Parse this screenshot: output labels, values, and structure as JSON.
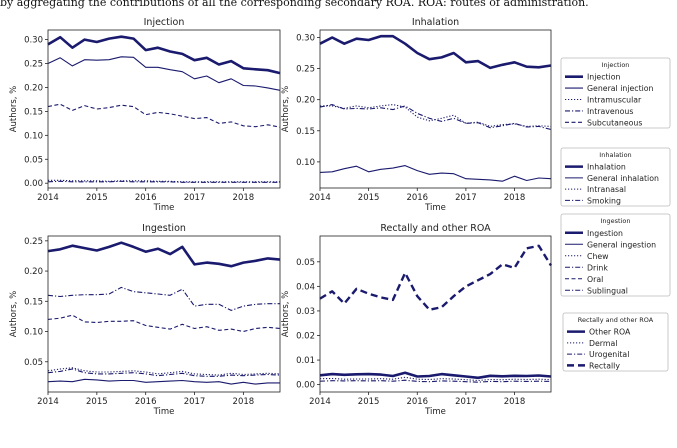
{
  "caption": "by aggregating the contributions of all the corresponding secondary ROA. ROA: routes of administration.",
  "colors": {
    "line": "#1a1a6e",
    "axis": "#222222",
    "legend_border": "#bbbbbb"
  },
  "chart_data": [
    {
      "id": "injection",
      "type": "line",
      "title": "Injection",
      "xlabel": "Time",
      "ylabel": "Authors, %",
      "xlim": [
        2014,
        2018.75
      ],
      "ylim": [
        -0.01,
        0.32
      ],
      "xticks": [
        "2014",
        "2015",
        "2016",
        "2017",
        "2018"
      ],
      "yticks": [
        "0.00",
        "0.05",
        "0.10",
        "0.15",
        "0.20",
        "0.25",
        "0.30"
      ],
      "x": [
        2014.0,
        2014.25,
        2014.5,
        2014.75,
        2015.0,
        2015.25,
        2015.5,
        2015.75,
        2016.0,
        2016.25,
        2016.5,
        2016.75,
        2017.0,
        2017.25,
        2017.5,
        2017.75,
        2018.0,
        2018.25,
        2018.5,
        2018.75
      ],
      "series": [
        {
          "name": "Injection",
          "style": "thick",
          "values": [
            0.29,
            0.305,
            0.283,
            0.3,
            0.295,
            0.302,
            0.306,
            0.302,
            0.278,
            0.283,
            0.275,
            0.27,
            0.257,
            0.262,
            0.248,
            0.255,
            0.24,
            0.238,
            0.236,
            0.23
          ]
        },
        {
          "name": "General injection",
          "style": "solid",
          "values": [
            0.25,
            0.262,
            0.245,
            0.258,
            0.257,
            0.258,
            0.264,
            0.263,
            0.242,
            0.242,
            0.237,
            0.233,
            0.218,
            0.224,
            0.21,
            0.218,
            0.204,
            0.203,
            0.199,
            0.194
          ]
        },
        {
          "name": "Intramuscular",
          "style": "dotted",
          "values": [
            0.006,
            0.006,
            0.005,
            0.005,
            0.005,
            0.004,
            0.005,
            0.005,
            0.005,
            0.004,
            0.004,
            0.003,
            0.003,
            0.003,
            0.003,
            0.003,
            0.003,
            0.003,
            0.003,
            0.003
          ]
        },
        {
          "name": "Intravenous",
          "style": "dashdot",
          "values": [
            0.003,
            0.004,
            0.003,
            0.003,
            0.003,
            0.003,
            0.004,
            0.003,
            0.003,
            0.003,
            0.003,
            0.002,
            0.002,
            0.002,
            0.002,
            0.002,
            0.002,
            0.002,
            0.002,
            0.002
          ]
        },
        {
          "name": "Subcutaneous",
          "style": "dashed",
          "values": [
            0.16,
            0.165,
            0.152,
            0.162,
            0.155,
            0.158,
            0.163,
            0.16,
            0.143,
            0.148,
            0.145,
            0.14,
            0.135,
            0.137,
            0.125,
            0.128,
            0.12,
            0.118,
            0.122,
            0.117
          ]
        }
      ],
      "legend": {
        "title": "Injection",
        "placement": "right"
      }
    },
    {
      "id": "inhalation",
      "type": "line",
      "title": "Inhalation",
      "xlabel": "Time",
      "ylabel": "Authors, %",
      "xlim": [
        2014,
        2018.75
      ],
      "ylim": [
        0.058,
        0.312
      ],
      "xticks": [
        "2014",
        "2015",
        "2016",
        "2017",
        "2018"
      ],
      "yticks": [
        "0.10",
        "0.15",
        "0.20",
        "0.25",
        "0.30"
      ],
      "x": [
        2014.0,
        2014.25,
        2014.5,
        2014.75,
        2015.0,
        2015.25,
        2015.5,
        2015.75,
        2016.0,
        2016.25,
        2016.5,
        2016.75,
        2017.0,
        2017.25,
        2017.5,
        2017.75,
        2018.0,
        2018.25,
        2018.5,
        2018.75
      ],
      "series": [
        {
          "name": "Inhalation",
          "style": "thick",
          "values": [
            0.29,
            0.3,
            0.29,
            0.298,
            0.296,
            0.302,
            0.302,
            0.29,
            0.275,
            0.265,
            0.268,
            0.275,
            0.26,
            0.262,
            0.251,
            0.256,
            0.26,
            0.253,
            0.252,
            0.255
          ]
        },
        {
          "name": "General inhalation",
          "style": "solid",
          "values": [
            0.083,
            0.084,
            0.089,
            0.093,
            0.084,
            0.088,
            0.09,
            0.094,
            0.086,
            0.08,
            0.082,
            0.081,
            0.073,
            0.072,
            0.071,
            0.069,
            0.077,
            0.07,
            0.074,
            0.073
          ]
        },
        {
          "name": "Intranasal",
          "style": "dotted",
          "values": [
            0.19,
            0.19,
            0.186,
            0.19,
            0.187,
            0.19,
            0.192,
            0.188,
            0.172,
            0.166,
            0.17,
            0.175,
            0.162,
            0.164,
            0.157,
            0.16,
            0.161,
            0.157,
            0.158,
            0.157
          ]
        },
        {
          "name": "Smoking",
          "style": "dashdot",
          "values": [
            0.188,
            0.192,
            0.185,
            0.186,
            0.185,
            0.187,
            0.184,
            0.19,
            0.178,
            0.17,
            0.165,
            0.17,
            0.162,
            0.163,
            0.155,
            0.158,
            0.162,
            0.156,
            0.157,
            0.152
          ]
        }
      ],
      "legend": {
        "title": "Inhalation",
        "placement": "right"
      }
    },
    {
      "id": "ingestion",
      "type": "line",
      "title": "Ingestion",
      "xlabel": "Time",
      "ylabel": "Authors, %",
      "xlim": [
        2014,
        2018.75
      ],
      "ylim": [
        0.0,
        0.258
      ],
      "xticks": [
        "2014",
        "2015",
        "2016",
        "2017",
        "2018"
      ],
      "yticks": [
        "0.05",
        "0.10",
        "0.15",
        "0.20",
        "0.25"
      ],
      "x": [
        2014.0,
        2014.25,
        2014.5,
        2014.75,
        2015.0,
        2015.25,
        2015.5,
        2015.75,
        2016.0,
        2016.25,
        2016.5,
        2016.75,
        2017.0,
        2017.25,
        2017.5,
        2017.75,
        2018.0,
        2018.25,
        2018.5,
        2018.75
      ],
      "series": [
        {
          "name": "Ingestion",
          "style": "thick",
          "values": [
            0.233,
            0.236,
            0.242,
            0.238,
            0.234,
            0.24,
            0.247,
            0.24,
            0.232,
            0.237,
            0.228,
            0.24,
            0.211,
            0.214,
            0.212,
            0.208,
            0.214,
            0.217,
            0.221,
            0.219
          ]
        },
        {
          "name": "General ingestion",
          "style": "solid",
          "values": [
            0.017,
            0.018,
            0.017,
            0.021,
            0.02,
            0.018,
            0.019,
            0.019,
            0.016,
            0.017,
            0.018,
            0.019,
            0.017,
            0.016,
            0.017,
            0.013,
            0.016,
            0.013,
            0.015,
            0.015
          ]
        },
        {
          "name": "Chew",
          "style": "dotted",
          "values": [
            0.035,
            0.038,
            0.04,
            0.035,
            0.033,
            0.033,
            0.034,
            0.035,
            0.033,
            0.03,
            0.032,
            0.034,
            0.03,
            0.029,
            0.028,
            0.031,
            0.029,
            0.03,
            0.031,
            0.03
          ]
        },
        {
          "name": "Drink",
          "style": "dashdot",
          "values": [
            0.032,
            0.034,
            0.038,
            0.032,
            0.03,
            0.03,
            0.031,
            0.032,
            0.03,
            0.027,
            0.029,
            0.031,
            0.027,
            0.026,
            0.026,
            0.028,
            0.027,
            0.028,
            0.029,
            0.028
          ]
        },
        {
          "name": "Oral",
          "style": "dashed",
          "values": [
            0.12,
            0.122,
            0.127,
            0.116,
            0.115,
            0.117,
            0.117,
            0.118,
            0.11,
            0.107,
            0.104,
            0.112,
            0.105,
            0.108,
            0.102,
            0.104,
            0.1,
            0.105,
            0.107,
            0.105
          ]
        },
        {
          "name": "Sublingual",
          "style": "dashdot",
          "values": [
            0.16,
            0.158,
            0.16,
            0.161,
            0.161,
            0.162,
            0.173,
            0.166,
            0.164,
            0.162,
            0.16,
            0.17,
            0.142,
            0.145,
            0.145,
            0.135,
            0.142,
            0.145,
            0.146,
            0.146
          ]
        }
      ],
      "legend": {
        "title": "Ingestion",
        "placement": "right"
      }
    },
    {
      "id": "rectally",
      "type": "line",
      "title": "Rectally and other ROA",
      "xlabel": "Time",
      "ylabel": "Authors, %",
      "xlim": [
        2014,
        2018.75
      ],
      "ylim": [
        -0.003,
        0.0605
      ],
      "xticks": [
        "2014",
        "2015",
        "2016",
        "2017",
        "2018"
      ],
      "yticks": [
        "0.00",
        "0.01",
        "0.02",
        "0.03",
        "0.04",
        "0.05"
      ],
      "x": [
        2014.0,
        2014.25,
        2014.5,
        2014.75,
        2015.0,
        2015.25,
        2015.5,
        2015.75,
        2016.0,
        2016.25,
        2016.5,
        2016.75,
        2017.0,
        2017.25,
        2017.5,
        2017.75,
        2018.0,
        2018.25,
        2018.5,
        2018.75
      ],
      "series": [
        {
          "name": "Other ROA",
          "style": "thick",
          "values": [
            0.0038,
            0.0043,
            0.004,
            0.0042,
            0.0043,
            0.0041,
            0.0035,
            0.0048,
            0.0033,
            0.0035,
            0.0043,
            0.0038,
            0.0033,
            0.0028,
            0.0036,
            0.0034,
            0.0036,
            0.0035,
            0.0037,
            0.0033
          ]
        },
        {
          "name": "Dermal",
          "style": "dotted",
          "values": [
            0.0024,
            0.0025,
            0.0022,
            0.0023,
            0.0023,
            0.0024,
            0.0022,
            0.003,
            0.0022,
            0.0021,
            0.0024,
            0.0023,
            0.002,
            0.0017,
            0.0021,
            0.002,
            0.0022,
            0.0021,
            0.0022,
            0.002
          ]
        },
        {
          "name": "Urogenital",
          "style": "dashdot",
          "values": [
            0.0014,
            0.0016,
            0.0015,
            0.0016,
            0.0015,
            0.0016,
            0.0014,
            0.0018,
            0.0013,
            0.0012,
            0.0015,
            0.0014,
            0.0012,
            0.001,
            0.0013,
            0.0012,
            0.0014,
            0.0013,
            0.0014,
            0.0013
          ]
        },
        {
          "name": "Rectally",
          "style": "thick-dashed",
          "values": [
            0.035,
            0.038,
            0.033,
            0.039,
            0.037,
            0.0355,
            0.0345,
            0.0455,
            0.036,
            0.0305,
            0.0315,
            0.036,
            0.04,
            0.0425,
            0.045,
            0.049,
            0.0475,
            0.0555,
            0.0565,
            0.0485
          ]
        }
      ],
      "legend": {
        "title": "Rectally and other ROA",
        "placement": "right"
      }
    }
  ]
}
